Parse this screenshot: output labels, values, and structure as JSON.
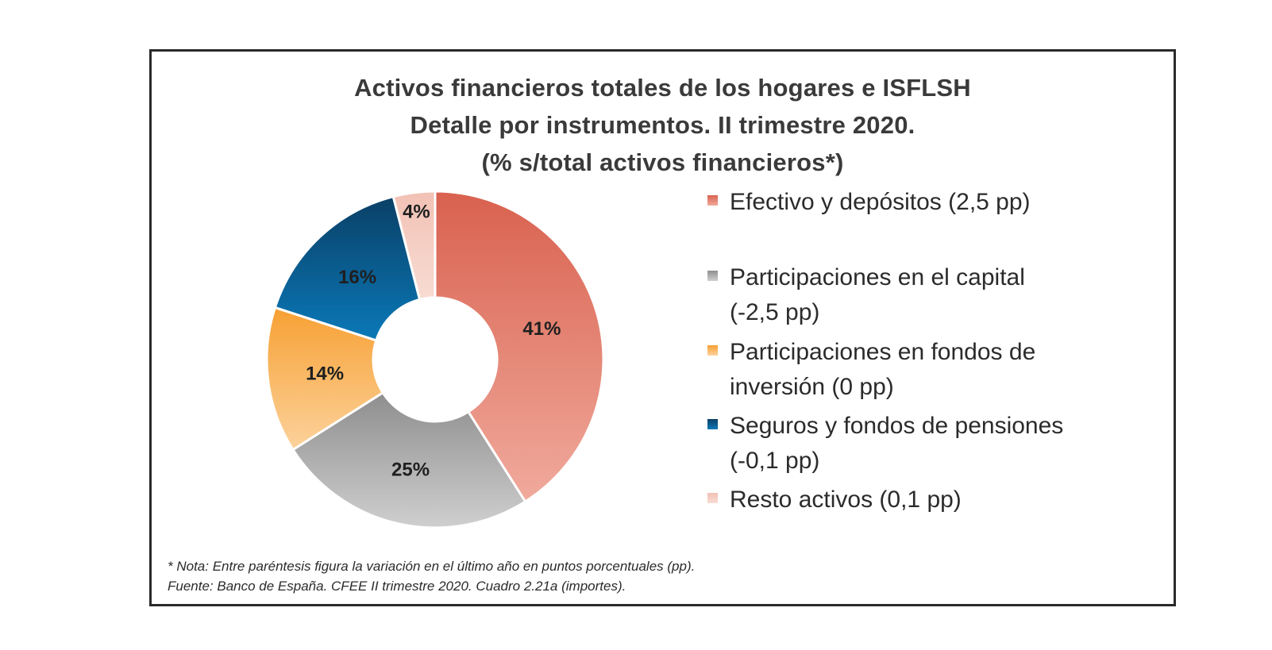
{
  "chart_data": {
    "type": "pie",
    "variant": "donut",
    "title": [
      "Activos financieros totales de los hogares e ISFLSH",
      "Detalle por instrumentos. II trimestre 2020.",
      "(% s/total activos financieros*)"
    ],
    "unit": "%",
    "start_angle": "12 o'clock, clockwise",
    "legend_position": "right",
    "slices": [
      {
        "name": "Efectivo y depósitos",
        "value": 41,
        "label": "41%",
        "legend": "Efectivo y depósitos  (2,5 pp)",
        "change_pp": 2.5,
        "color": "#d9614f",
        "color_light": "#f0aa9c"
      },
      {
        "name": "Participaciones en el capital",
        "value": 25,
        "label": "25%",
        "legend": "Participaciones en el capital\n(-2,5 pp)",
        "change_pp": -2.5,
        "color": "#8e8e8e",
        "color_light": "#cfcfcf"
      },
      {
        "name": "Participaciones en fondos de inversión",
        "value": 14,
        "label": "14%",
        "legend": "Participaciones en fondos de\ninversión  (0 pp)",
        "change_pp": 0,
        "color": "#f7a033",
        "color_light": "#fcd29c"
      },
      {
        "name": "Seguros y fondos de pensiones",
        "value": 16,
        "label": "16%",
        "legend": "Seguros y fondos de pensiones\n(-0,1 pp)",
        "change_pp": -0.1,
        "color": "#0a3f66",
        "color_light": "#0a79b8"
      },
      {
        "name": "Resto activos",
        "value": 4,
        "label": "4%",
        "legend": "Resto activos  (0,1 pp)",
        "change_pp": 0.1,
        "color": "#f2c1b4",
        "color_light": "#f8dcd3"
      }
    ],
    "notes": [
      "* Nota: Entre paréntesis  figura la variación en el último año en puntos porcentuales (pp).",
      " Fuente: Banco de España. CFEE II trimestre 2020. Cuadro 2.21a (importes)."
    ]
  }
}
